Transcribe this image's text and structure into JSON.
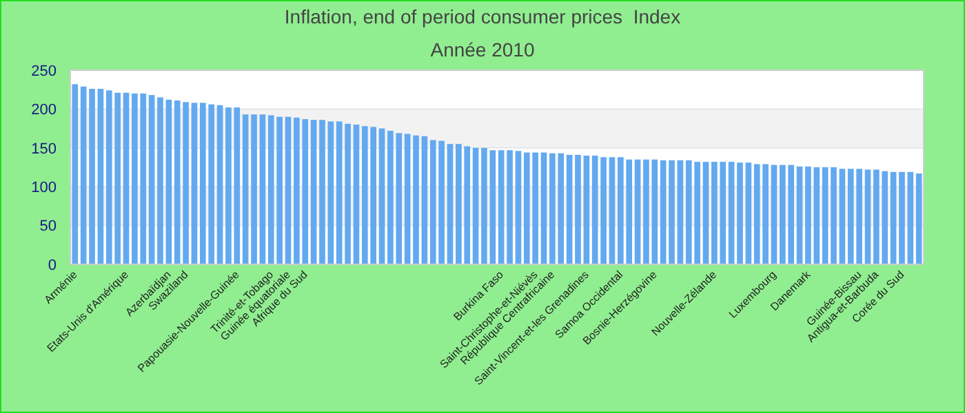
{
  "chart_data": {
    "type": "bar",
    "title": "Inflation, end of period consumer prices  Index",
    "subtitle": "Année 2010",
    "categories": [
      "Arménie",
      null,
      null,
      null,
      null,
      null,
      "Etats-Unis d'Amérique",
      null,
      null,
      null,
      null,
      "Azerbaïdjan",
      null,
      "Swaziland",
      null,
      null,
      null,
      null,
      null,
      "Papouasie-Nouvelle-Guinée",
      null,
      null,
      null,
      "Trinité-et-Tobago",
      null,
      "Guinée équatoriale",
      null,
      "Afrique du Sud",
      null,
      null,
      null,
      null,
      null,
      null,
      null,
      null,
      null,
      null,
      null,
      null,
      null,
      null,
      null,
      null,
      null,
      null,
      null,
      null,
      null,
      null,
      "Burkina Faso",
      null,
      null,
      null,
      "Saint-Christophe-et-Niévès",
      null,
      "République Centrafricaine",
      null,
      null,
      null,
      "Saint-Vincent-et-les Grenadines",
      null,
      null,
      null,
      "Samoa Occidental",
      null,
      null,
      null,
      "Bosnie-Herzégovine",
      null,
      null,
      null,
      null,
      null,
      null,
      "Nouvelle-Zélande",
      null,
      null,
      null,
      null,
      null,
      null,
      "Luxembourg",
      null,
      null,
      null,
      "Danemark",
      null,
      null,
      null,
      null,
      null,
      "Guinée-Bissau",
      null,
      "Antigua-et-Barbuda",
      null,
      null,
      "Corée du Sud",
      null,
      null
    ],
    "values": [
      232,
      229,
      226,
      226,
      224,
      221,
      221,
      220,
      220,
      218,
      215,
      212,
      211,
      209,
      208,
      208,
      206,
      205,
      202,
      202,
      193,
      193,
      193,
      192,
      190,
      190,
      189,
      187,
      186,
      186,
      184,
      184,
      181,
      180,
      178,
      177,
      175,
      172,
      169,
      168,
      166,
      165,
      160,
      159,
      155,
      155,
      152,
      150,
      150,
      147,
      147,
      147,
      146,
      144,
      144,
      144,
      143,
      143,
      141,
      141,
      140,
      140,
      138,
      138,
      138,
      135,
      135,
      135,
      135,
      134,
      134,
      134,
      134,
      132,
      132,
      132,
      132,
      132,
      131,
      131,
      129,
      129,
      128,
      128,
      128,
      126,
      126,
      125,
      125,
      125,
      123,
      123,
      123,
      122,
      122,
      120,
      119,
      119,
      119,
      117
    ],
    "color": "#63a9f0",
    "ylim": [
      0,
      250
    ],
    "yticks": [
      0,
      50,
      100,
      150,
      200,
      250
    ],
    "grid": "y"
  }
}
